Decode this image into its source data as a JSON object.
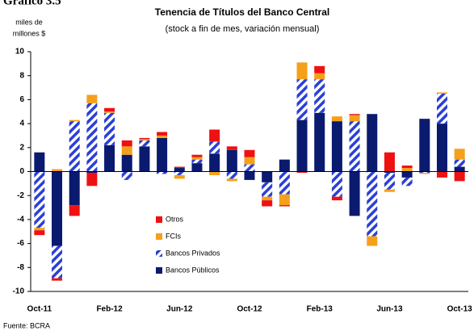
{
  "chart_data": {
    "type": "stacked_bar",
    "figure_label": "Gráfico 3.5",
    "title": "Tenencia de Títulos del Banco Central",
    "subtitle": "(stock a fin de mes, variación mensual)",
    "y_axis_label": [
      "miles de",
      "millones $"
    ],
    "source": "Fuente: BCRA",
    "categories": [
      "Oct-11",
      null,
      null,
      null,
      "Feb-12",
      null,
      null,
      null,
      "Jun-12",
      null,
      null,
      null,
      "Oct-12",
      null,
      null,
      null,
      "Feb-13",
      null,
      null,
      null,
      "Jun-13",
      null,
      null,
      null,
      "Oct-13"
    ],
    "series": [
      {
        "name": "Bancos Públicos",
        "color": "#0a1a6e",
        "values": [
          1.6,
          -6.2,
          -2.8,
          -0.1,
          2.2,
          1.4,
          2.1,
          2.8,
          0.3,
          0.7,
          1.5,
          1.8,
          -0.7,
          -0.9,
          1.0,
          4.3,
          4.9,
          4.2,
          -3.7,
          4.8,
          -0.1,
          -0.5,
          4.4,
          4.0,
          0.4
        ]
      },
      {
        "name": "Bancos Privados",
        "color": "#2a3fd6",
        "pattern": "hatch",
        "values": [
          -4.7,
          -2.7,
          4.2,
          5.7,
          2.7,
          -0.7,
          0.5,
          -0.2,
          -0.3,
          0.3,
          1.0,
          -0.6,
          0.6,
          -1.2,
          -1.9,
          3.4,
          2.8,
          -2.1,
          4.2,
          -5.4,
          -1.4,
          -0.7,
          -0.1,
          2.5,
          0.6
        ]
      },
      {
        "name": "FCIs",
        "color": "#f5a01a",
        "values": [
          -0.2,
          0.2,
          0.1,
          0.7,
          0.1,
          0.7,
          0.1,
          0.2,
          -0.3,
          0.2,
          -0.3,
          -0.2,
          0.6,
          -0.3,
          -0.9,
          1.4,
          0.5,
          0.4,
          0.5,
          -0.8,
          -0.2,
          0.3,
          -0.1,
          0.1,
          0.9
        ]
      },
      {
        "name": "Otros",
        "color": "#ee1111",
        "values": [
          -0.4,
          -0.2,
          -0.9,
          -1.1,
          0.3,
          0.5,
          0.1,
          0.3,
          0.1,
          0.2,
          1.0,
          0.3,
          0.6,
          -0.5,
          -0.1,
          -0.1,
          0.6,
          -0.3,
          0.1,
          0,
          1.6,
          0.2,
          0,
          -0.5,
          -0.8
        ]
      }
    ],
    "ylim": [
      -10,
      10
    ],
    "yticks": [
      -10,
      -8,
      -6,
      -4,
      -2,
      0,
      2,
      4,
      6,
      8,
      10
    ],
    "grid": false
  }
}
